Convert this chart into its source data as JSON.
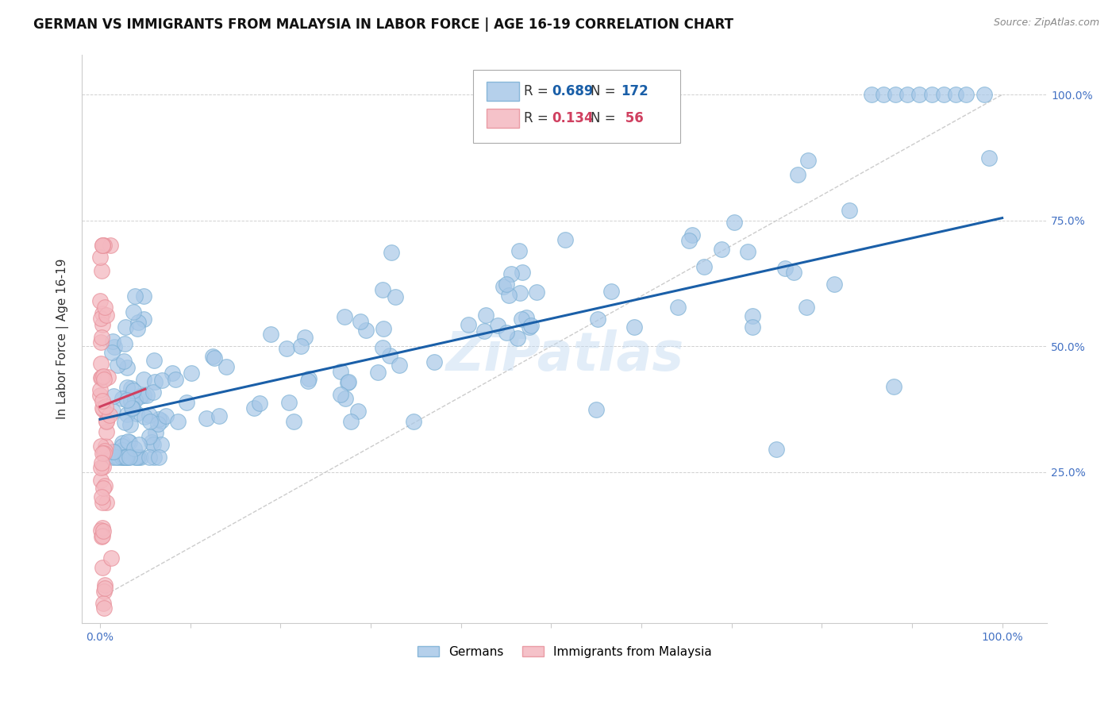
{
  "title": "GERMAN VS IMMIGRANTS FROM MALAYSIA IN LABOR FORCE | AGE 16-19 CORRELATION CHART",
  "source": "Source: ZipAtlas.com",
  "ylabel": "In Labor Force | Age 16-19",
  "xlim": [
    -0.02,
    1.05
  ],
  "ylim": [
    -0.05,
    1.08
  ],
  "x_ticks": [
    0.0,
    0.1,
    0.2,
    0.3,
    0.4,
    0.5,
    0.6,
    0.7,
    0.8,
    0.9,
    1.0
  ],
  "x_tick_labels": [
    "0.0%",
    "",
    "",
    "",
    "",
    "",
    "",
    "",
    "",
    "",
    "100.0%"
  ],
  "y_tick_labels": [
    "25.0%",
    "50.0%",
    "75.0%",
    "100.0%"
  ],
  "y_ticks": [
    0.25,
    0.5,
    0.75,
    1.0
  ],
  "blue_color": "#a8c8e8",
  "blue_edge_color": "#7aafd4",
  "pink_color": "#f4b8c0",
  "pink_edge_color": "#e8909a",
  "blue_line_color": "#1a5fa8",
  "pink_line_color": "#d04060",
  "diagonal_color": "#cccccc",
  "blue_R": 0.689,
  "blue_N": 172,
  "pink_R": 0.134,
  "pink_N": 56,
  "watermark": "ZiPatlas",
  "title_fontsize": 12,
  "axis_label_fontsize": 11,
  "tick_fontsize": 10,
  "tick_color": "#4472c4",
  "background_color": "#ffffff",
  "grid_color": "#cccccc",
  "blue_line_start_y": 0.355,
  "blue_line_end_y": 0.755,
  "pink_line_start_x": 0.0,
  "pink_line_start_y": 0.38,
  "pink_line_end_x": 0.05,
  "pink_line_end_y": 0.415
}
